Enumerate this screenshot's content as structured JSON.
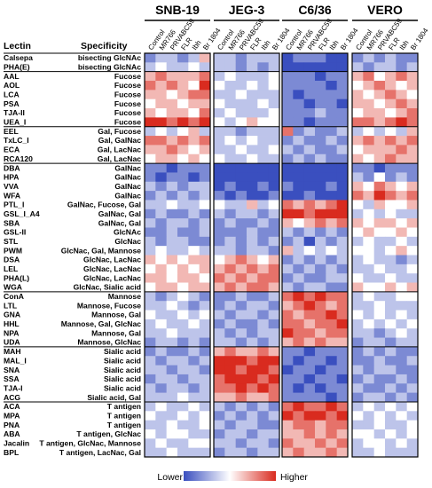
{
  "chart_data": {
    "type": "heatmap",
    "headers": {
      "lectin": "Lectin",
      "specificity": "Specificity"
    },
    "groups": [
      "SNB-19",
      "JEG-3",
      "C6/36",
      "VERO"
    ],
    "columns": [
      "Control",
      "MR766",
      "PRVABC59",
      "FLR",
      "Ibh",
      "Br 1804"
    ],
    "legend": {
      "low": "Lower",
      "high": "Higher"
    },
    "colors": {
      "low": "#3a4fbf",
      "mid": "#ffffff",
      "high": "#d92b1f"
    },
    "blocks": [
      2,
      6,
      4,
      14,
      6,
      6,
      6
    ],
    "rows": [
      {
        "lectin": "Calsepa",
        "spec": "bisecting GlcNAc",
        "v": [
          -2,
          -1,
          -1,
          -2,
          -1,
          1,
          -1,
          -1,
          -2,
          -1,
          -1,
          -1,
          -3,
          -2,
          -2,
          -2,
          -3,
          -3,
          -2,
          -1,
          -2,
          -1,
          -2,
          -2
        ]
      },
      {
        "lectin": "PHA(E)",
        "spec": "bisecting GlcNAc",
        "v": [
          -1,
          0,
          -1,
          -1,
          0,
          -1,
          -1,
          -1,
          -2,
          -1,
          -2,
          -1,
          -3,
          -3,
          -3,
          -3,
          -3,
          -3,
          -1,
          -2,
          -1,
          -1,
          -2,
          -1
        ]
      },
      {
        "lectin": "AAL",
        "spec": "Fucose",
        "v": [
          1,
          2,
          1,
          1,
          1,
          2,
          -1,
          0,
          -1,
          -1,
          -1,
          0,
          -2,
          -2,
          -2,
          -3,
          -2,
          -2,
          1,
          2,
          0,
          1,
          2,
          1
        ]
      },
      {
        "lectin": "AOL",
        "spec": "Fucose",
        "v": [
          2,
          1,
          2,
          1,
          0,
          3,
          0,
          -1,
          -1,
          0,
          -1,
          0,
          -2,
          -2,
          -2,
          -2,
          -3,
          -2,
          0,
          1,
          2,
          1,
          0,
          1
        ]
      },
      {
        "lectin": "LCA",
        "spec": "Fucose",
        "v": [
          1,
          1,
          0,
          1,
          2,
          2,
          -1,
          -1,
          0,
          -1,
          -1,
          -1,
          -2,
          -3,
          -2,
          -2,
          -2,
          -2,
          1,
          0,
          1,
          2,
          1,
          0
        ]
      },
      {
        "lectin": "PSA",
        "spec": "Fucose",
        "v": [
          0,
          1,
          1,
          0,
          1,
          1,
          0,
          -1,
          -1,
          -1,
          0,
          -1,
          -2,
          -2,
          -3,
          -2,
          -2,
          -3,
          1,
          1,
          0,
          1,
          2,
          1
        ]
      },
      {
        "lectin": "TJA-II",
        "spec": "Fucose",
        "v": [
          1,
          0,
          1,
          1,
          0,
          2,
          -1,
          0,
          -1,
          -1,
          -1,
          0,
          -2,
          -2,
          -2,
          -1,
          -2,
          -2,
          0,
          1,
          1,
          0,
          1,
          2
        ]
      },
      {
        "lectin": "UEA_I",
        "spec": "Fucose",
        "v": [
          3,
          3,
          2,
          3,
          2,
          3,
          0,
          -1,
          0,
          1,
          0,
          0,
          -2,
          -2,
          -3,
          -2,
          -2,
          -2,
          2,
          2,
          1,
          2,
          3,
          2
        ]
      },
      {
        "lectin": "EEL",
        "spec": "Gal, Fucose",
        "v": [
          -1,
          0,
          -1,
          0,
          1,
          -1,
          -1,
          -1,
          -2,
          -1,
          -1,
          -1,
          2,
          -2,
          -1,
          -2,
          -2,
          -1,
          -1,
          0,
          -1,
          0,
          -1,
          1
        ]
      },
      {
        "lectin": "TxLC_I",
        "spec": "Gal, GalNac",
        "v": [
          2,
          2,
          1,
          2,
          1,
          2,
          -1,
          0,
          -1,
          0,
          -1,
          -1,
          -2,
          -1,
          -2,
          -2,
          -1,
          -2,
          1,
          2,
          1,
          2,
          1,
          2
        ]
      },
      {
        "lectin": "ECA",
        "spec": "Gal, LacNac",
        "v": [
          1,
          1,
          2,
          1,
          0,
          1,
          -1,
          -1,
          0,
          -1,
          -1,
          0,
          -1,
          -2,
          -1,
          -2,
          -2,
          -1,
          0,
          1,
          1,
          1,
          2,
          1
        ]
      },
      {
        "lectin": "RCA120",
        "spec": "Gal, LacNac",
        "v": [
          0,
          1,
          1,
          0,
          1,
          0,
          0,
          -1,
          -1,
          0,
          -1,
          -1,
          -2,
          -1,
          -2,
          -1,
          -2,
          -2,
          1,
          0,
          1,
          2,
          1,
          1
        ]
      },
      {
        "lectin": "DBA",
        "spec": "GalNac",
        "v": [
          -2,
          -2,
          -3,
          -2,
          -2,
          -2,
          -3,
          -3,
          -3,
          -3,
          -3,
          -3,
          -3,
          -3,
          -3,
          -3,
          -3,
          -3,
          -2,
          -2,
          -3,
          -2,
          -2,
          -2
        ]
      },
      {
        "lectin": "HPA",
        "spec": "GalNac",
        "v": [
          -2,
          -3,
          -2,
          -2,
          -3,
          -2,
          -3,
          -3,
          -3,
          -3,
          -3,
          -3,
          -3,
          -3,
          -3,
          -3,
          -3,
          -3,
          -1,
          -2,
          0,
          -2,
          -1,
          -2
        ]
      },
      {
        "lectin": "VVA",
        "spec": "GalNac",
        "v": [
          -1,
          -2,
          -1,
          -2,
          -1,
          -1,
          -3,
          -2,
          -3,
          -3,
          -2,
          -3,
          -2,
          -3,
          -3,
          -3,
          -2,
          -3,
          1,
          0,
          2,
          1,
          0,
          1
        ]
      },
      {
        "lectin": "WFA",
        "spec": "GalNac",
        "v": [
          -2,
          -1,
          -2,
          -1,
          -2,
          -1,
          -2,
          -3,
          -2,
          -3,
          -3,
          -2,
          -3,
          -3,
          -2,
          -3,
          -3,
          -3,
          2,
          1,
          3,
          2,
          1,
          2
        ]
      },
      {
        "lectin": "PTL_I",
        "spec": "GalNac, Fucose, Gal",
        "v": [
          -1,
          -1,
          0,
          -1,
          -1,
          0,
          0,
          -1,
          -1,
          1,
          -1,
          0,
          2,
          1,
          2,
          1,
          2,
          3,
          0,
          -1,
          1,
          0,
          0,
          1
        ]
      },
      {
        "lectin": "GSL_I_A4",
        "spec": "GalNac, Gal",
        "v": [
          -2,
          -1,
          -2,
          -2,
          -1,
          -2,
          -1,
          -2,
          -1,
          -1,
          -2,
          -1,
          3,
          3,
          2,
          3,
          3,
          3,
          -1,
          0,
          -1,
          0,
          -1,
          -1
        ]
      },
      {
        "lectin": "SBA",
        "spec": "GalNac, Gal",
        "v": [
          -1,
          -2,
          -1,
          -1,
          -2,
          -1,
          -2,
          -1,
          -2,
          -2,
          -1,
          -2,
          1,
          0,
          1,
          2,
          1,
          2,
          1,
          0,
          1,
          1,
          0,
          1
        ]
      },
      {
        "lectin": "GSL-II",
        "spec": "GlcNAc",
        "v": [
          -2,
          -2,
          -1,
          -2,
          -2,
          -1,
          -2,
          -2,
          -2,
          -1,
          -2,
          -2,
          -1,
          -2,
          -1,
          -2,
          -1,
          -2,
          0,
          1,
          0,
          0,
          1,
          0
        ]
      },
      {
        "lectin": "STL",
        "spec": "GlcNac",
        "v": [
          -1,
          -2,
          -1,
          -1,
          -2,
          -2,
          -2,
          -1,
          -2,
          -1,
          -2,
          -1,
          -2,
          -1,
          -3,
          -1,
          -2,
          -1,
          -1,
          0,
          -1,
          -1,
          0,
          -1
        ]
      },
      {
        "lectin": "PWM",
        "spec": "GlcNac, Gal, Mannose",
        "v": [
          -1,
          0,
          -1,
          -1,
          0,
          -1,
          -1,
          -1,
          -2,
          -1,
          -1,
          -2,
          1,
          -1,
          0,
          -1,
          0,
          -1,
          0,
          0,
          -1,
          0,
          1,
          0
        ]
      },
      {
        "lectin": "DSA",
        "spec": "GlcNac, LacNac",
        "v": [
          1,
          0,
          1,
          0,
          1,
          1,
          0,
          1,
          2,
          1,
          0,
          1,
          -2,
          -1,
          -2,
          -1,
          -2,
          -1,
          -1,
          0,
          -1,
          -1,
          -2,
          -1
        ]
      },
      {
        "lectin": "LEL",
        "spec": "GlcNac, LacNac",
        "v": [
          0,
          1,
          0,
          1,
          0,
          1,
          1,
          2,
          1,
          2,
          1,
          2,
          -1,
          -2,
          -1,
          -2,
          -1,
          -2,
          -1,
          -1,
          0,
          -1,
          -1,
          0
        ]
      },
      {
        "lectin": "PHA(L)",
        "spec": "GlcNac, LacNac",
        "v": [
          1,
          1,
          0,
          1,
          1,
          0,
          2,
          1,
          2,
          1,
          2,
          2,
          -2,
          -1,
          -2,
          -2,
          -1,
          -1,
          0,
          -1,
          -1,
          0,
          -1,
          -1
        ]
      },
      {
        "lectin": "WGA",
        "spec": "GlcNac, Sialic acid",
        "v": [
          0,
          1,
          1,
          0,
          1,
          1,
          1,
          2,
          1,
          2,
          2,
          1,
          -1,
          -2,
          -1,
          -1,
          -2,
          -2,
          1,
          0,
          0,
          1,
          0,
          1
        ]
      },
      {
        "lectin": "ConA",
        "spec": "Mannose",
        "v": [
          -1,
          -2,
          -1,
          0,
          -1,
          -2,
          -2,
          -2,
          -1,
          -2,
          -2,
          -1,
          2,
          3,
          2,
          3,
          2,
          2,
          -1,
          0,
          -1,
          -1,
          0,
          0
        ]
      },
      {
        "lectin": "LTL",
        "spec": "Mannose, Fucose",
        "v": [
          -1,
          -1,
          0,
          -1,
          -2,
          -1,
          -2,
          -1,
          -2,
          -1,
          -1,
          -2,
          1,
          2,
          3,
          2,
          1,
          2,
          -1,
          -1,
          0,
          -1,
          -1,
          -1
        ]
      },
      {
        "lectin": "GNA",
        "spec": "Mannose, Gal",
        "v": [
          0,
          -1,
          -1,
          0,
          -1,
          0,
          -1,
          -2,
          -1,
          -1,
          -2,
          -1,
          2,
          1,
          2,
          2,
          3,
          2,
          0,
          -1,
          0,
          -1,
          0,
          -1
        ]
      },
      {
        "lectin": "HHL",
        "spec": "Mannose, Gal, GlcNac",
        "v": [
          -1,
          0,
          -1,
          -1,
          0,
          -1,
          -2,
          -1,
          -2,
          -2,
          -1,
          -2,
          2,
          2,
          1,
          2,
          2,
          3,
          -1,
          0,
          -1,
          0,
          -1,
          0
        ]
      },
      {
        "lectin": "NPA",
        "spec": "Mannose, Gal",
        "v": [
          -1,
          -1,
          0,
          -1,
          -1,
          -1,
          -1,
          -2,
          -1,
          -2,
          -1,
          -1,
          3,
          2,
          2,
          1,
          2,
          2,
          -1,
          -1,
          -2,
          -1,
          0,
          -1
        ]
      },
      {
        "lectin": "UDA",
        "spec": "Mannose, GlcNac",
        "v": [
          -2,
          -1,
          -1,
          -2,
          -1,
          -2,
          -1,
          -1,
          -2,
          -1,
          -2,
          -1,
          1,
          2,
          1,
          2,
          1,
          1,
          -2,
          -1,
          -1,
          -2,
          -1,
          -1
        ]
      },
      {
        "lectin": "MAH",
        "spec": "Sialic acid",
        "v": [
          -2,
          -1,
          -2,
          -2,
          -1,
          -2,
          1,
          2,
          1,
          1,
          2,
          1,
          -2,
          -2,
          -3,
          -2,
          -2,
          -2,
          -2,
          -1,
          -2,
          -1,
          -2,
          -2
        ]
      },
      {
        "lectin": "MAL_I",
        "spec": "Sialic acid",
        "v": [
          -1,
          -2,
          -1,
          -1,
          -2,
          -1,
          3,
          3,
          3,
          2,
          3,
          3,
          -2,
          -3,
          -2,
          -2,
          -3,
          -2,
          -2,
          -2,
          -1,
          -2,
          -2,
          -1
        ]
      },
      {
        "lectin": "SNA",
        "spec": "Sialic acid",
        "v": [
          -1,
          -1,
          -2,
          -1,
          -1,
          -2,
          3,
          3,
          2,
          3,
          3,
          2,
          -3,
          -2,
          -2,
          -3,
          -2,
          -2,
          -1,
          -2,
          -1,
          -1,
          -2,
          -2
        ]
      },
      {
        "lectin": "SSA",
        "spec": "Sialic acid",
        "v": [
          -2,
          -1,
          -1,
          -2,
          -1,
          -1,
          2,
          3,
          3,
          3,
          2,
          3,
          -2,
          -2,
          -3,
          -2,
          -2,
          -3,
          -2,
          -1,
          -2,
          -2,
          -1,
          -2
        ]
      },
      {
        "lectin": "TJA-I",
        "spec": "Sialic acid",
        "v": [
          -1,
          -2,
          -1,
          -1,
          -2,
          -1,
          2,
          2,
          3,
          2,
          3,
          2,
          -2,
          -3,
          -2,
          -3,
          -2,
          -2,
          -1,
          -2,
          -2,
          -1,
          -2,
          -1
        ]
      },
      {
        "lectin": "ACG",
        "spec": "Sialic acid, Gal",
        "v": [
          -1,
          -1,
          -1,
          0,
          -1,
          -1,
          1,
          1,
          2,
          1,
          1,
          2,
          -2,
          -2,
          -2,
          -2,
          -3,
          -2,
          -2,
          -1,
          -1,
          -2,
          -1,
          -2
        ]
      },
      {
        "lectin": "ACA",
        "spec": "T antigen",
        "v": [
          -1,
          0,
          -1,
          -1,
          0,
          -1,
          -1,
          -2,
          -1,
          -2,
          -1,
          -2,
          2,
          3,
          2,
          2,
          3,
          2,
          -1,
          0,
          -1,
          0,
          -1,
          0
        ]
      },
      {
        "lectin": "MPA",
        "spec": "T antigen",
        "v": [
          0,
          -1,
          -1,
          0,
          -1,
          0,
          -2,
          -1,
          -2,
          -1,
          -2,
          -1,
          3,
          2,
          3,
          3,
          2,
          3,
          0,
          -1,
          0,
          -1,
          0,
          -1
        ]
      },
      {
        "lectin": "PNA",
        "spec": "T antigen",
        "v": [
          -1,
          -1,
          0,
          -1,
          -1,
          0,
          -1,
          -2,
          -1,
          -1,
          -2,
          -2,
          1,
          2,
          2,
          1,
          2,
          2,
          -1,
          -1,
          0,
          -1,
          -1,
          0
        ]
      },
      {
        "lectin": "ABA",
        "spec": "T antigen, GlcNac",
        "v": [
          0,
          -1,
          0,
          0,
          -1,
          -1,
          -2,
          -1,
          -1,
          -2,
          -1,
          -1,
          1,
          1,
          2,
          1,
          2,
          1,
          0,
          0,
          -1,
          0,
          -1,
          0
        ]
      },
      {
        "lectin": "Jacalin",
        "spec": "T antigen, GlcNac, Mannose",
        "v": [
          -1,
          0,
          -1,
          -1,
          0,
          0,
          -1,
          -1,
          -2,
          -1,
          -1,
          -2,
          2,
          1,
          1,
          2,
          1,
          2,
          -1,
          0,
          0,
          -1,
          0,
          -1
        ]
      },
      {
        "lectin": "BPL",
        "spec": "T antigen, LacNac, Gal",
        "v": [
          -1,
          -1,
          0,
          -1,
          -1,
          -1,
          -2,
          -1,
          -1,
          -2,
          -1,
          -1,
          1,
          2,
          1,
          1,
          2,
          1,
          -1,
          -1,
          0,
          -1,
          -1,
          -1
        ]
      }
    ]
  }
}
